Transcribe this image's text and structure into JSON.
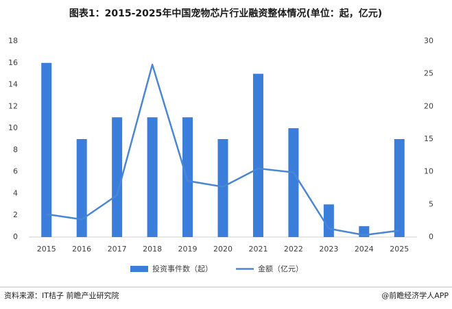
{
  "chart_data": {
    "type": "bar",
    "title": "图表1：2015-2025年中国宠物芯片行业融资整体情况(单位：起，亿元)",
    "categories": [
      "2015",
      "2016",
      "2017",
      "2018",
      "2019",
      "2020",
      "2021",
      "2022",
      "2023",
      "2024",
      "2025"
    ],
    "series": [
      {
        "name": "投资事件数（起）",
        "type": "bar",
        "color": "#3b7ddb",
        "values": [
          16,
          9,
          11,
          11,
          11,
          9,
          15,
          10,
          3,
          1,
          9
        ]
      },
      {
        "name": "金额（亿元）",
        "type": "line",
        "axis": "y2",
        "color": "#4a86d6",
        "values": [
          3.5,
          2.7,
          6.4,
          26.4,
          8.6,
          7.7,
          10.5,
          9.9,
          1.3,
          0.3,
          1.0
        ]
      }
    ],
    "ylim": [
      0,
      18
    ],
    "yticks": [
      0,
      2,
      4,
      6,
      8,
      10,
      12,
      14,
      16,
      18
    ],
    "y2lim": [
      0,
      30
    ],
    "y2ticks": [
      0,
      5,
      10,
      15,
      20,
      25,
      30
    ],
    "grid": false,
    "legend": "bottom"
  },
  "footer": {
    "source": "资料来源：IT桔子 前瞻产业研究院",
    "brand": "@前瞻经济学人APP"
  }
}
